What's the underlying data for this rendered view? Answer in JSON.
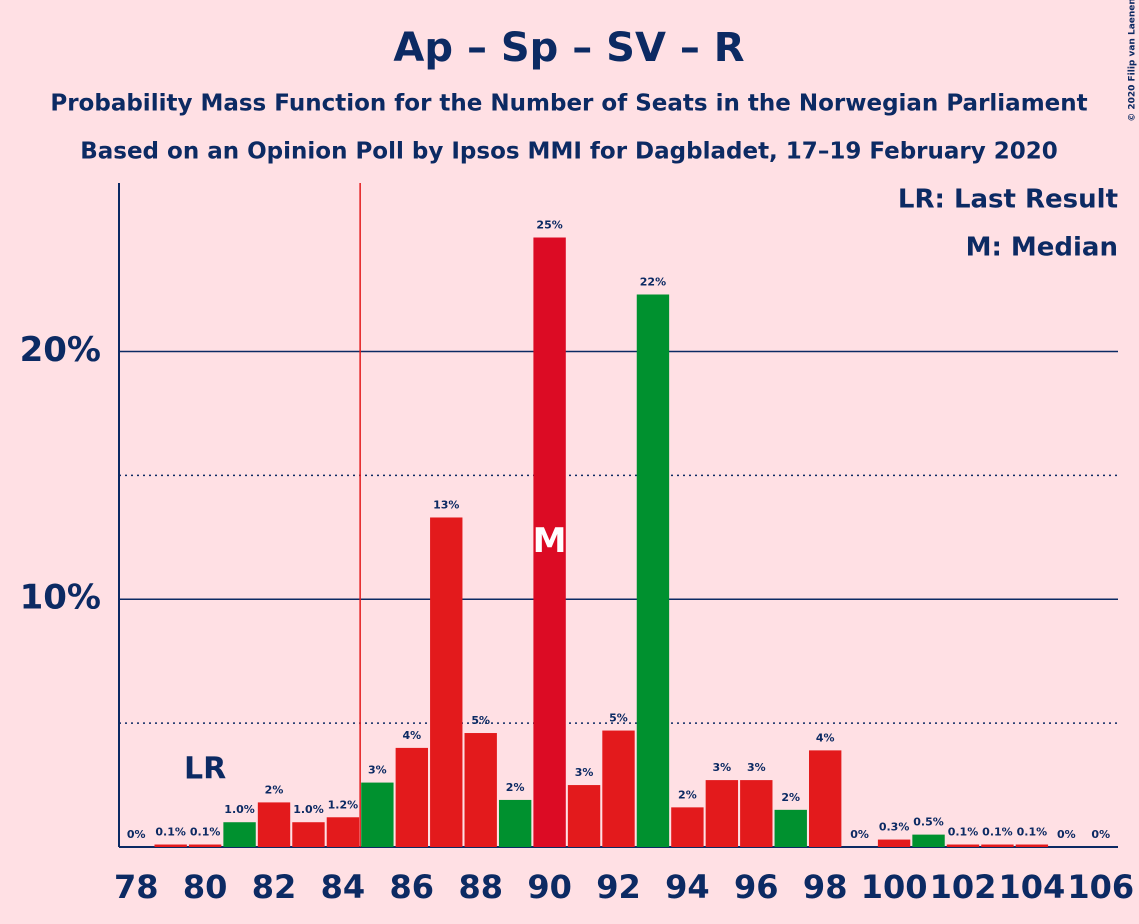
{
  "chart_data": {
    "type": "bar",
    "title": "Ap – Sp – SV – R",
    "subtitles": [
      "Probability Mass Function for the Number of Seats in the Norwegian Parliament",
      "Based on an Opinion Poll by Ipsos MMI for Dagbladet, 17–19 February 2020"
    ],
    "x": [
      78,
      79,
      80,
      81,
      82,
      83,
      84,
      85,
      86,
      87,
      88,
      89,
      90,
      91,
      92,
      93,
      94,
      95,
      96,
      97,
      98,
      99,
      100,
      101,
      102,
      103,
      104,
      105,
      106
    ],
    "values": [
      0,
      0.1,
      0.1,
      1.0,
      1.8,
      1.0,
      1.2,
      2.6,
      4.0,
      13.3,
      4.6,
      1.9,
      24.6,
      2.5,
      4.7,
      22.3,
      1.6,
      2.7,
      2.7,
      1.5,
      3.9,
      0,
      0.3,
      0.5,
      0.1,
      0.1,
      0.1,
      0,
      0
    ],
    "value_labels": [
      "0%",
      "0.1%",
      "0.1%",
      "1.0%",
      "2%",
      "1.0%",
      "1.2%",
      "3%",
      "4%",
      "13%",
      "5%",
      "2%",
      "25%",
      "3%",
      "5%",
      "22%",
      "2%",
      "3%",
      "3%",
      "2%",
      "4%",
      "0%",
      "0.3%",
      "0.5%",
      "0.1%",
      "0.1%",
      "0.1%",
      "0%",
      "0%"
    ],
    "colors": [
      "#e31a1c",
      "#e31a1c",
      "#e31a1c",
      "#00912f",
      "#e31a1c",
      "#e31a1c",
      "#e31a1c",
      "#00912f",
      "#e31a1c",
      "#e31a1c",
      "#e31a1c",
      "#00912f",
      "#dc0b24",
      "#e31a1c",
      "#e31a1c",
      "#00912f",
      "#e31a1c",
      "#e31a1c",
      "#e31a1c",
      "#00912f",
      "#e31a1c",
      "#e31a1c",
      "#e31a1c",
      "#00912f",
      "#e31a1c",
      "#e31a1c",
      "#e31a1c",
      "#e31a1c",
      "#e31a1c"
    ],
    "xlim": [
      77.5,
      106.5
    ],
    "xticks": [
      78,
      80,
      82,
      84,
      86,
      88,
      90,
      92,
      94,
      96,
      98,
      100,
      102,
      104,
      106
    ],
    "ylim": [
      0,
      26.8
    ],
    "yticks": [
      {
        "value": 10,
        "label": "10%"
      },
      {
        "value": 20,
        "label": "20%"
      }
    ],
    "minor_yticks": [
      5,
      15
    ],
    "grid": true,
    "majority": 85,
    "last_result": {
      "value": 80,
      "label": "LR"
    },
    "median": {
      "value": 90,
      "label": "M"
    },
    "legend": [
      "LR: Last Result",
      "M: Median"
    ],
    "legend_position": "top-right",
    "copyright": "© 2020 Filip van Laenen"
  }
}
